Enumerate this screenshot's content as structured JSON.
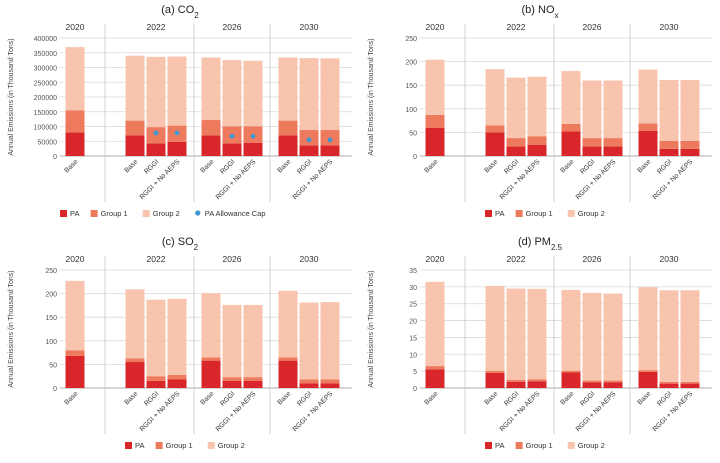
{
  "colors": {
    "PA": "#d8262b",
    "Group 1": "#ee7a5e",
    "Group 2": "#f8c4ad",
    "PA Allowance Cap": "#3d98d3"
  },
  "chart_data": [
    {
      "type": "bar",
      "stacked": true,
      "title": "(a) CO2",
      "ylabel": "Annual Emissions (in Thousand Tons)",
      "ylim": [
        0,
        400000
      ],
      "yticks": [
        0,
        50000,
        100000,
        150000,
        200000,
        250000,
        300000,
        350000,
        400000
      ],
      "grid": true,
      "legend_position": "bottom",
      "years": [
        "2020",
        "2022",
        "2026",
        "2030"
      ],
      "categories": [
        "Base",
        "Base",
        "RGGI",
        "RGGI + No AEPS",
        "Base",
        "RGGI",
        "RGGI + No AEPS",
        "Base",
        "RGGI",
        "RGGI + No AEPS"
      ],
      "series": [
        {
          "name": "PA",
          "values": [
            80000,
            70000,
            43000,
            48000,
            70000,
            43000,
            45000,
            70000,
            36000,
            36000
          ]
        },
        {
          "name": "Group 1",
          "values": [
            75000,
            50000,
            55000,
            55000,
            52000,
            58000,
            56000,
            50000,
            52000,
            52000
          ]
        },
        {
          "name": "Group 2",
          "values": [
            214000,
            220000,
            238000,
            234000,
            212000,
            224000,
            222000,
            214000,
            244000,
            243000
          ]
        }
      ],
      "markers": {
        "name": "PA Allowance Cap",
        "values": [
          null,
          null,
          78000,
          78000,
          null,
          67000,
          67000,
          null,
          55000,
          55000
        ]
      }
    },
    {
      "type": "bar",
      "stacked": true,
      "title": "(b) NOx",
      "ylabel": "Annual Emissions (in Thousand Tons)",
      "ylim": [
        0,
        250
      ],
      "yticks": [
        0,
        50,
        100,
        150,
        200,
        250
      ],
      "grid": true,
      "legend_position": "bottom",
      "years": [
        "2020",
        "2022",
        "2026",
        "2030"
      ],
      "categories": [
        "Base",
        "Base",
        "RGGI",
        "RGGI + No AEPS",
        "Base",
        "RGGI",
        "RGGI + No AEPS",
        "Base",
        "RGGI",
        "RGGI + No AEPS"
      ],
      "series": [
        {
          "name": "PA",
          "values": [
            60,
            50,
            20,
            24,
            52,
            20,
            20,
            53,
            15,
            15
          ]
        },
        {
          "name": "Group 1",
          "values": [
            27,
            15,
            18,
            18,
            16,
            18,
            18,
            16,
            17,
            17
          ]
        },
        {
          "name": "Group 2",
          "values": [
            117,
            119,
            128,
            126,
            112,
            122,
            122,
            114,
            129,
            129
          ]
        }
      ]
    },
    {
      "type": "bar",
      "stacked": true,
      "title": "(c) SO2",
      "ylabel": "Annual Emissions (in Thousand Tons)",
      "ylim": [
        0,
        250
      ],
      "yticks": [
        0,
        50,
        100,
        150,
        200,
        250
      ],
      "grid": true,
      "legend_position": "bottom",
      "years": [
        "2020",
        "2022",
        "2026",
        "2030"
      ],
      "categories": [
        "Base",
        "Base",
        "RGGI",
        "RGGI + No AEPS",
        "Base",
        "RGGI",
        "RGGI + No AEPS",
        "Base",
        "RGGI",
        "RGGI + No AEPS"
      ],
      "series": [
        {
          "name": "PA",
          "values": [
            68,
            55,
            15,
            18,
            58,
            15,
            15,
            58,
            10,
            10
          ]
        },
        {
          "name": "Group 1",
          "values": [
            12,
            8,
            10,
            10,
            7,
            8,
            8,
            7,
            8,
            8
          ]
        },
        {
          "name": "Group 2",
          "values": [
            147,
            146,
            162,
            161,
            136,
            153,
            153,
            141,
            163,
            164
          ]
        }
      ]
    },
    {
      "type": "bar",
      "stacked": true,
      "title": "(d) PM2.5",
      "ylabel": "Annual Emissions (in Thousand Tons)",
      "ylim": [
        0,
        35
      ],
      "yticks": [
        0,
        5,
        10,
        15,
        20,
        25,
        30,
        35
      ],
      "grid": true,
      "legend_position": "bottom",
      "years": [
        "2020",
        "2022",
        "2026",
        "2030"
      ],
      "categories": [
        "Base",
        "Base",
        "RGGI",
        "RGGI + No AEPS",
        "Base",
        "RGGI",
        "RGGI + No AEPS",
        "Base",
        "RGGI",
        "RGGI + No AEPS"
      ],
      "series": [
        {
          "name": "PA",
          "values": [
            5.5,
            4.5,
            1.8,
            2.0,
            4.6,
            1.7,
            1.7,
            4.8,
            1.3,
            1.3
          ]
        },
        {
          "name": "Group 1",
          "values": [
            1.0,
            0.6,
            0.6,
            0.6,
            0.5,
            0.5,
            0.5,
            0.5,
            0.5,
            0.5
          ]
        },
        {
          "name": "Group 2",
          "values": [
            25.0,
            25.2,
            27.1,
            26.8,
            24.0,
            26.0,
            25.8,
            24.6,
            27.2,
            27.2
          ]
        }
      ]
    }
  ]
}
